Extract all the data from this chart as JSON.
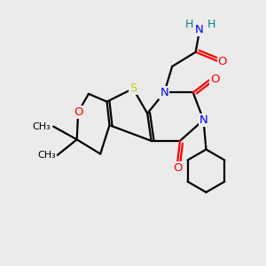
{
  "bg_color": "#ebebeb",
  "atom_colors": {
    "S": "#cccc00",
    "O": "#ff0000",
    "N": "#0000ff",
    "C": "#000000",
    "H": "#008080"
  },
  "bond_color": "#000000",
  "bond_width": 1.6
}
